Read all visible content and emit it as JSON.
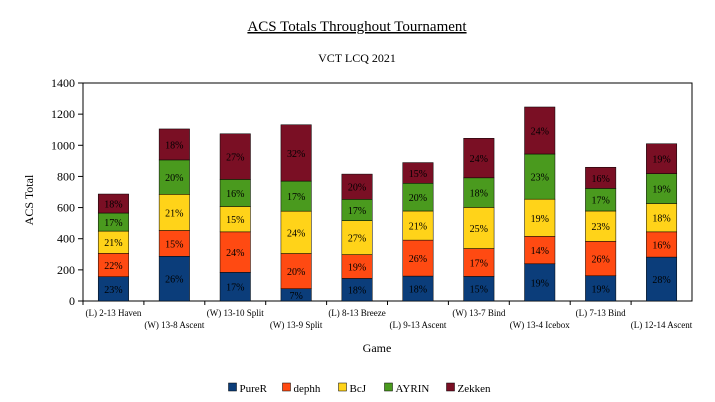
{
  "chart_data": {
    "type": "bar",
    "stacked": true,
    "title": "ACS Totals Throughout Tournament",
    "subtitle": "VCT LCQ 2021",
    "xlabel": "Game",
    "ylabel": "ACS Total",
    "ylim": [
      0,
      1400
    ],
    "yticks": [
      0,
      200,
      400,
      600,
      800,
      1000,
      1200,
      1400
    ],
    "legend_position": "bottom",
    "categories": [
      "(L) 2-13 Haven",
      "(W) 13-8 Ascent",
      "(W) 13-10 Split",
      "(W) 13-9 Split",
      "(L) 8-13 Breeze",
      "(L) 9-13 Ascent",
      "(W) 13-7 Bind",
      "(W) 13-4 Icebox",
      "(L) 7-13 Bind",
      "(L) 12-14 Ascent"
    ],
    "series": [
      {
        "name": "PureR",
        "color": "#0b3d7a",
        "values": [
          156,
          287,
          184,
          79,
          145,
          160,
          158,
          239,
          162,
          282
        ],
        "labels": [
          "23%",
          "26%",
          "17%",
          "7%",
          "18%",
          "18%",
          "15%",
          "19%",
          "19%",
          "28%"
        ]
      },
      {
        "name": "dephh",
        "color": "#ff4a12",
        "values": [
          150,
          166,
          260,
          226,
          153,
          231,
          179,
          176,
          221,
          162
        ],
        "labels": [
          "22%",
          "15%",
          "24%",
          "20%",
          "19%",
          "26%",
          "17%",
          "14%",
          "26%",
          "16%"
        ]
      },
      {
        "name": "BcJ",
        "color": "#ffd319",
        "values": [
          143,
          232,
          163,
          272,
          218,
          187,
          264,
          239,
          195,
          182
        ],
        "labels": [
          "21%",
          "21%",
          "15%",
          "24%",
          "27%",
          "21%",
          "25%",
          "19%",
          "23%",
          "18%"
        ]
      },
      {
        "name": "AYRIN",
        "color": "#4a9a1e",
        "values": [
          116,
          221,
          174,
          193,
          137,
          178,
          190,
          290,
          145,
          192
        ],
        "labels": [
          "17%",
          "20%",
          "16%",
          "17%",
          "17%",
          "20%",
          "18%",
          "23%",
          "17%",
          "19%"
        ]
      },
      {
        "name": "Zekken",
        "color": "#7a0f24",
        "values": [
          122,
          199,
          293,
          362,
          162,
          133,
          254,
          302,
          136,
          192
        ],
        "labels": [
          "18%",
          "18%",
          "27%",
          "32%",
          "20%",
          "15%",
          "24%",
          "24%",
          "16%",
          "19%"
        ]
      }
    ]
  }
}
